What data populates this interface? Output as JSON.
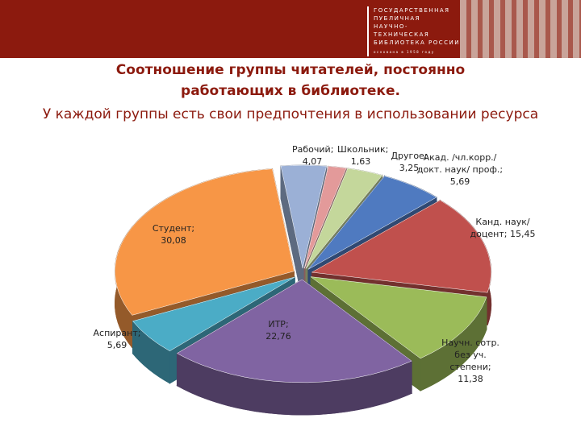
{
  "header": {
    "logo_lines": [
      "ГОСУДАРСТВЕННАЯ",
      "ПУБЛИЧНАЯ",
      "НАУЧНО-ТЕХНИЧЕСКАЯ",
      "БИБЛИОТЕКА РОССИИ"
    ],
    "logo_note": "основана в 1958 году"
  },
  "chart_data": {
    "type": "pie",
    "title": "Соотношение группы читателей, постоянно работающих в библиотеке.",
    "subtitle": "У каждой группы есть свои предпочтения в использовании ресурса",
    "categories": [
      "Рабочий",
      "Школьник",
      "Другое",
      "Акад. /чл.корр./докт. наук/ проф.",
      "Канд. наук/ доцент",
      "Научн. сотр. без уч. степени",
      "ИТР",
      "Аспирант",
      "Студент"
    ],
    "values": [
      4.07,
      1.63,
      3.25,
      5.69,
      15.45,
      11.38,
      22.76,
      5.69,
      30.08
    ],
    "value_labels": [
      "4,07",
      "1,63",
      "3,25",
      "5,69",
      "15,45",
      "11,38",
      "22,76",
      "5,69",
      "30,08"
    ],
    "label_separator": ";",
    "colors": [
      "#9bb0d6",
      "#e39a9a",
      "#c4d79b",
      "#4f7ac0",
      "#c0504d",
      "#9bbb59",
      "#8064a2",
      "#4bacc6",
      "#f79646"
    ]
  }
}
